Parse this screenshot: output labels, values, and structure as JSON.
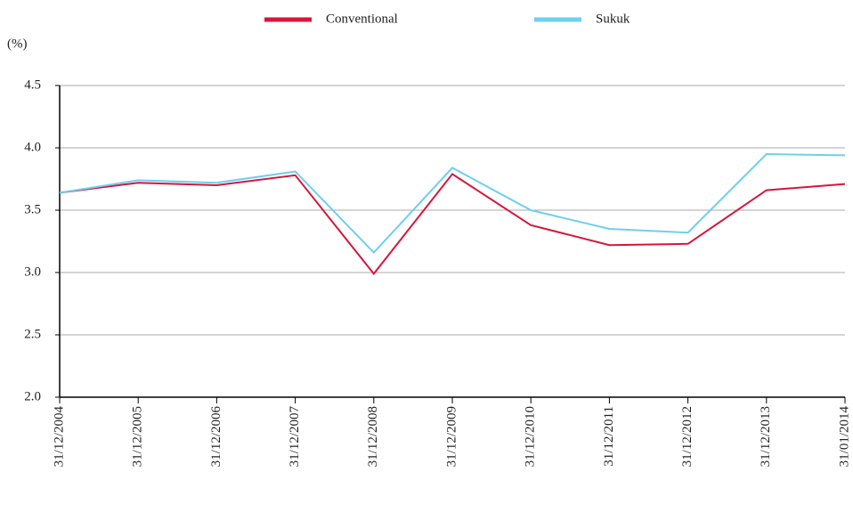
{
  "chart_data": {
    "type": "line",
    "y_label": "(%)",
    "categories": [
      "31/12/2004",
      "31/12/2005",
      "31/12/2006",
      "31/12/2007",
      "31/12/2008",
      "31/12/2009",
      "31/12/2010",
      "31/12/2011",
      "31/12/2012",
      "31/12/2013",
      "31/01/2014"
    ],
    "series": [
      {
        "name": "Conventional",
        "color": "#d7153a",
        "values": [
          3.64,
          3.72,
          3.7,
          3.78,
          2.99,
          3.79,
          3.38,
          3.22,
          3.23,
          3.66,
          3.71
        ]
      },
      {
        "name": "Sukuk",
        "color": "#6ecff0",
        "values": [
          3.64,
          3.74,
          3.72,
          3.81,
          3.16,
          3.84,
          3.5,
          3.35,
          3.32,
          3.95,
          3.94
        ]
      }
    ],
    "ylim": [
      2.0,
      4.5
    ],
    "yticks": [
      {
        "value": 2.0,
        "label": "2.0"
      },
      2.5,
      {
        "value": 3.0,
        "label": "3.0"
      },
      3.5,
      {
        "value": 4.0,
        "label": "4.0"
      },
      4.5
    ],
    "grid": true,
    "legend": "top"
  }
}
